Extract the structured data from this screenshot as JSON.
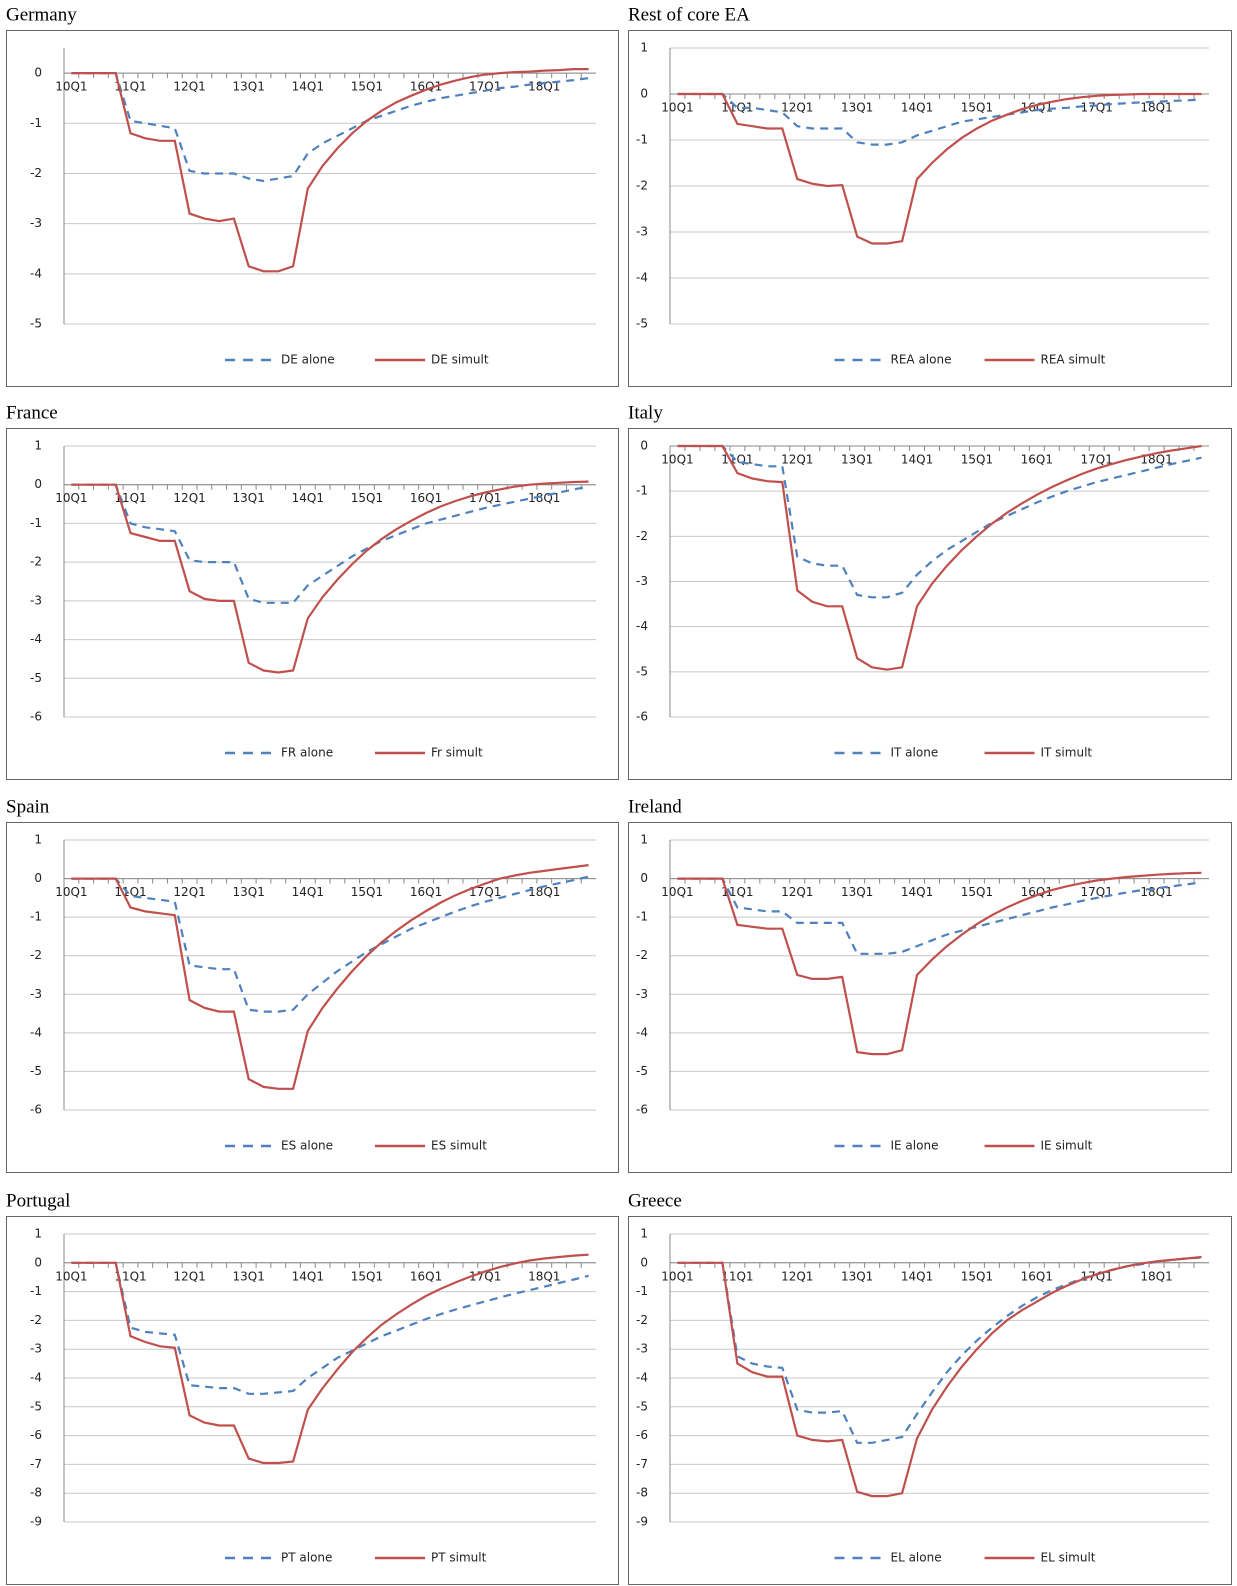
{
  "chart_data": [
    {
      "type": "line",
      "title": "Germany",
      "categories": [
        "10Q1",
        null,
        null,
        null,
        "11Q1",
        null,
        null,
        null,
        "12Q1",
        null,
        null,
        null,
        "13Q1",
        null,
        null,
        null,
        "14Q1",
        null,
        null,
        null,
        "15Q1",
        null,
        null,
        null,
        "16Q1",
        null,
        null,
        null,
        "17Q1",
        null,
        null,
        null,
        "18Q1",
        null,
        null,
        null
      ],
      "series": [
        {
          "name": "DE alone",
          "color": "#4f81bd",
          "dashed": true,
          "values": [
            0,
            0,
            0,
            0,
            -0.95,
            -1.0,
            -1.05,
            -1.1,
            -1.95,
            -2.0,
            -2.0,
            -2.0,
            -2.1,
            -2.15,
            -2.1,
            -2.05,
            -1.6,
            -1.4,
            -1.25,
            -1.1,
            -0.95,
            -0.85,
            -0.75,
            -0.65,
            -0.57,
            -0.5,
            -0.45,
            -0.4,
            -0.35,
            -0.3,
            -0.27,
            -0.23,
            -0.2,
            -0.17,
            -0.14,
            -0.1
          ]
        },
        {
          "name": "DE simult",
          "color": "#c0504d",
          "values": [
            0,
            0,
            0,
            0,
            -1.2,
            -1.3,
            -1.35,
            -1.35,
            -2.8,
            -2.9,
            -2.95,
            -2.9,
            -3.85,
            -3.95,
            -3.95,
            -3.85,
            -2.3,
            -1.85,
            -1.5,
            -1.2,
            -0.95,
            -0.75,
            -0.58,
            -0.45,
            -0.33,
            -0.23,
            -0.15,
            -0.08,
            -0.03,
            0,
            0.02,
            0.03,
            0.05,
            0.06,
            0.08,
            0.08
          ]
        }
      ],
      "ylim": [
        -5,
        0.5
      ],
      "yticks": [
        -5,
        -4,
        -3,
        -2,
        -1,
        0
      ],
      "grid": true
    },
    {
      "type": "line",
      "title": "Rest of core EA",
      "categories": [
        "10Q1",
        null,
        null,
        null,
        "11Q1",
        null,
        null,
        null,
        "12Q1",
        null,
        null,
        null,
        "13Q1",
        null,
        null,
        null,
        "14Q1",
        null,
        null,
        null,
        "15Q1",
        null,
        null,
        null,
        "16Q1",
        null,
        null,
        null,
        "17Q1",
        null,
        null,
        null,
        "18Q1",
        null,
        null,
        null
      ],
      "series": [
        {
          "name": "REA alone",
          "color": "#4f81bd",
          "dashed": true,
          "values": [
            0,
            0,
            0,
            0,
            -0.3,
            -0.3,
            -0.35,
            -0.4,
            -0.7,
            -0.75,
            -0.75,
            -0.75,
            -1.05,
            -1.1,
            -1.1,
            -1.05,
            -0.9,
            -0.8,
            -0.7,
            -0.6,
            -0.55,
            -0.5,
            -0.45,
            -0.4,
            -0.35,
            -0.32,
            -0.3,
            -0.27,
            -0.25,
            -0.22,
            -0.2,
            -0.18,
            -0.17,
            -0.15,
            -0.14,
            -0.12
          ]
        },
        {
          "name": "REA simult",
          "color": "#c0504d",
          "values": [
            0,
            0,
            0,
            0,
            -0.65,
            -0.7,
            -0.75,
            -0.75,
            -1.85,
            -1.95,
            -2.0,
            -1.98,
            -3.1,
            -3.25,
            -3.25,
            -3.2,
            -1.85,
            -1.5,
            -1.2,
            -0.95,
            -0.75,
            -0.58,
            -0.45,
            -0.33,
            -0.24,
            -0.17,
            -0.11,
            -0.07,
            -0.04,
            -0.02,
            -0.01,
            0,
            0,
            0,
            0,
            0
          ]
        }
      ],
      "ylim": [
        -5,
        1
      ],
      "yticks": [
        -5,
        -4,
        -3,
        -2,
        -1,
        0,
        1
      ],
      "grid": true
    },
    {
      "type": "line",
      "title": "France",
      "categories": [
        "10Q1",
        null,
        null,
        null,
        "11Q1",
        null,
        null,
        null,
        "12Q1",
        null,
        null,
        null,
        "13Q1",
        null,
        null,
        null,
        "14Q1",
        null,
        null,
        null,
        "15Q1",
        null,
        null,
        null,
        "16Q1",
        null,
        null,
        null,
        "17Q1",
        null,
        null,
        null,
        "18Q1",
        null,
        null,
        null
      ],
      "series": [
        {
          "name": "FR alone",
          "color": "#4f81bd",
          "dashed": true,
          "values": [
            0,
            0,
            0,
            0,
            -1.0,
            -1.1,
            -1.15,
            -1.2,
            -1.95,
            -2.0,
            -2.0,
            -2.0,
            -2.95,
            -3.05,
            -3.05,
            -3.05,
            -2.6,
            -2.35,
            -2.1,
            -1.85,
            -1.65,
            -1.45,
            -1.3,
            -1.15,
            -1.0,
            -0.9,
            -0.8,
            -0.7,
            -0.6,
            -0.52,
            -0.44,
            -0.36,
            -0.28,
            -0.2,
            -0.12,
            -0.05
          ]
        },
        {
          "name": "Fr simult",
          "color": "#c0504d",
          "values": [
            0,
            0,
            0,
            0,
            -1.25,
            -1.35,
            -1.45,
            -1.45,
            -2.75,
            -2.95,
            -3.0,
            -3.0,
            -4.6,
            -4.8,
            -4.85,
            -4.8,
            -3.45,
            -2.9,
            -2.45,
            -2.05,
            -1.7,
            -1.4,
            -1.15,
            -0.93,
            -0.73,
            -0.56,
            -0.42,
            -0.3,
            -0.2,
            -0.12,
            -0.05,
            0,
            0.03,
            0.05,
            0.07,
            0.08
          ]
        }
      ],
      "ylim": [
        -6,
        1
      ],
      "yticks": [
        -6,
        -5,
        -4,
        -3,
        -2,
        -1,
        0,
        1
      ],
      "grid": true
    },
    {
      "type": "line",
      "title": "Italy",
      "categories": [
        "10Q1",
        null,
        null,
        null,
        "11Q1",
        null,
        null,
        null,
        "12Q1",
        null,
        null,
        null,
        "13Q1",
        null,
        null,
        null,
        "14Q1",
        null,
        null,
        null,
        "15Q1",
        null,
        null,
        null,
        "16Q1",
        null,
        null,
        null,
        "17Q1",
        null,
        null,
        null,
        "18Q1",
        null,
        null,
        null
      ],
      "series": [
        {
          "name": "IT alone",
          "color": "#4f81bd",
          "dashed": true,
          "values": [
            0,
            0,
            0,
            0,
            -0.35,
            -0.4,
            -0.45,
            -0.45,
            -2.45,
            -2.6,
            -2.65,
            -2.65,
            -3.3,
            -3.35,
            -3.35,
            -3.25,
            -2.85,
            -2.55,
            -2.3,
            -2.1,
            -1.9,
            -1.7,
            -1.55,
            -1.4,
            -1.25,
            -1.12,
            -1.0,
            -0.9,
            -0.8,
            -0.72,
            -0.64,
            -0.56,
            -0.48,
            -0.4,
            -0.33,
            -0.26
          ]
        },
        {
          "name": "IT simult",
          "color": "#c0504d",
          "values": [
            0,
            0,
            0,
            0,
            -0.6,
            -0.72,
            -0.78,
            -0.8,
            -3.2,
            -3.45,
            -3.55,
            -3.55,
            -4.7,
            -4.9,
            -4.95,
            -4.9,
            -3.55,
            -3.05,
            -2.65,
            -2.3,
            -2.0,
            -1.72,
            -1.48,
            -1.27,
            -1.08,
            -0.91,
            -0.76,
            -0.62,
            -0.5,
            -0.4,
            -0.31,
            -0.23,
            -0.16,
            -0.1,
            -0.05,
            0
          ]
        }
      ],
      "ylim": [
        -6,
        0
      ],
      "yticks": [
        -6,
        -5,
        -4,
        -3,
        -2,
        -1,
        0
      ],
      "grid": true
    },
    {
      "type": "line",
      "title": "Spain",
      "categories": [
        "10Q1",
        null,
        null,
        null,
        "11Q1",
        null,
        null,
        null,
        "12Q1",
        null,
        null,
        null,
        "13Q1",
        null,
        null,
        null,
        "14Q1",
        null,
        null,
        null,
        "15Q1",
        null,
        null,
        null,
        "16Q1",
        null,
        null,
        null,
        "17Q1",
        null,
        null,
        null,
        "18Q1",
        null,
        null,
        null
      ],
      "series": [
        {
          "name": "ES alone",
          "color": "#4f81bd",
          "dashed": true,
          "values": [
            0,
            0,
            0,
            0,
            -0.45,
            -0.5,
            -0.55,
            -0.6,
            -2.25,
            -2.3,
            -2.35,
            -2.35,
            -3.4,
            -3.45,
            -3.45,
            -3.4,
            -3.0,
            -2.7,
            -2.4,
            -2.15,
            -1.9,
            -1.7,
            -1.5,
            -1.3,
            -1.15,
            -1.0,
            -0.85,
            -0.72,
            -0.6,
            -0.5,
            -0.4,
            -0.3,
            -0.2,
            -0.12,
            -0.04,
            0.05
          ]
        },
        {
          "name": "ES simult",
          "color": "#c0504d",
          "values": [
            0,
            0,
            0,
            0,
            -0.75,
            -0.85,
            -0.9,
            -0.95,
            -3.15,
            -3.35,
            -3.45,
            -3.45,
            -5.2,
            -5.4,
            -5.45,
            -5.45,
            -3.95,
            -3.35,
            -2.85,
            -2.4,
            -2.0,
            -1.65,
            -1.35,
            -1.08,
            -0.84,
            -0.62,
            -0.43,
            -0.27,
            -0.13,
            0,
            0.08,
            0.15,
            0.2,
            0.25,
            0.3,
            0.35
          ]
        }
      ],
      "ylim": [
        -6,
        1
      ],
      "yticks": [
        -6,
        -5,
        -4,
        -3,
        -2,
        -1,
        0,
        1
      ],
      "grid": true
    },
    {
      "type": "line",
      "title": "Ireland",
      "categories": [
        "10Q1",
        null,
        null,
        null,
        "11Q1",
        null,
        null,
        null,
        "12Q1",
        null,
        null,
        null,
        "13Q1",
        null,
        null,
        null,
        "14Q1",
        null,
        null,
        null,
        "15Q1",
        null,
        null,
        null,
        "16Q1",
        null,
        null,
        null,
        "17Q1",
        null,
        null,
        null,
        "18Q1",
        null,
        null,
        null
      ],
      "series": [
        {
          "name": "IE alone",
          "color": "#4f81bd",
          "dashed": true,
          "values": [
            0,
            0,
            0,
            0,
            -0.75,
            -0.8,
            -0.85,
            -0.85,
            -1.15,
            -1.15,
            -1.15,
            -1.15,
            -1.95,
            -1.95,
            -1.95,
            -1.9,
            -1.75,
            -1.6,
            -1.45,
            -1.35,
            -1.25,
            -1.15,
            -1.05,
            -0.95,
            -0.85,
            -0.75,
            -0.67,
            -0.58,
            -0.5,
            -0.43,
            -0.36,
            -0.3,
            -0.25,
            -0.2,
            -0.15,
            -0.1
          ]
        },
        {
          "name": "IE simult",
          "color": "#c0504d",
          "values": [
            0,
            0,
            0,
            0,
            -1.2,
            -1.25,
            -1.3,
            -1.3,
            -2.5,
            -2.6,
            -2.6,
            -2.55,
            -4.5,
            -4.55,
            -4.55,
            -4.45,
            -2.5,
            -2.1,
            -1.75,
            -1.45,
            -1.18,
            -0.95,
            -0.75,
            -0.58,
            -0.43,
            -0.3,
            -0.2,
            -0.12,
            -0.05,
            0,
            0.04,
            0.07,
            0.1,
            0.12,
            0.14,
            0.15
          ]
        }
      ],
      "ylim": [
        -6,
        1
      ],
      "yticks": [
        -6,
        -5,
        -4,
        -3,
        -2,
        -1,
        0,
        1
      ],
      "grid": true
    },
    {
      "type": "line",
      "title": "Portugal",
      "categories": [
        "10Q1",
        null,
        null,
        null,
        "11Q1",
        null,
        null,
        null,
        "12Q1",
        null,
        null,
        null,
        "13Q1",
        null,
        null,
        null,
        "14Q1",
        null,
        null,
        null,
        "15Q1",
        null,
        null,
        null,
        "16Q1",
        null,
        null,
        null,
        "17Q1",
        null,
        null,
        null,
        "18Q1",
        null,
        null,
        null
      ],
      "series": [
        {
          "name": "PT alone",
          "color": "#4f81bd",
          "dashed": true,
          "values": [
            0,
            0,
            0,
            0,
            -2.25,
            -2.4,
            -2.45,
            -2.5,
            -4.25,
            -4.3,
            -4.35,
            -4.35,
            -4.55,
            -4.55,
            -4.5,
            -4.45,
            -4.0,
            -3.65,
            -3.3,
            -3.05,
            -2.8,
            -2.55,
            -2.35,
            -2.15,
            -1.95,
            -1.78,
            -1.62,
            -1.48,
            -1.34,
            -1.2,
            -1.07,
            -0.95,
            -0.83,
            -0.7,
            -0.58,
            -0.45
          ]
        },
        {
          "name": "PT simult",
          "color": "#c0504d",
          "values": [
            0,
            0,
            0,
            0,
            -2.55,
            -2.75,
            -2.9,
            -2.95,
            -5.3,
            -5.55,
            -5.65,
            -5.65,
            -6.8,
            -6.95,
            -6.95,
            -6.9,
            -5.1,
            -4.35,
            -3.7,
            -3.1,
            -2.6,
            -2.15,
            -1.78,
            -1.45,
            -1.15,
            -0.9,
            -0.68,
            -0.48,
            -0.3,
            -0.15,
            -0.02,
            0.08,
            0.15,
            0.2,
            0.25,
            0.28
          ]
        }
      ],
      "ylim": [
        -9,
        1
      ],
      "yticks": [
        -9,
        -8,
        -7,
        -6,
        -5,
        -4,
        -3,
        -2,
        -1,
        0,
        1
      ],
      "grid": true
    },
    {
      "type": "line",
      "title": "Greece",
      "categories": [
        "10Q1",
        null,
        null,
        null,
        "11Q1",
        null,
        null,
        null,
        "12Q1",
        null,
        null,
        null,
        "13Q1",
        null,
        null,
        null,
        "14Q1",
        null,
        null,
        null,
        "15Q1",
        null,
        null,
        null,
        "16Q1",
        null,
        null,
        null,
        "17Q1",
        null,
        null,
        null,
        "18Q1",
        null,
        null,
        null
      ],
      "series": [
        {
          "name": "EL alone",
          "color": "#4f81bd",
          "dashed": true,
          "values": [
            0,
            0,
            0,
            0,
            -3.25,
            -3.5,
            -3.6,
            -3.65,
            -5.1,
            -5.2,
            -5.2,
            -5.15,
            -6.25,
            -6.25,
            -6.15,
            -6.05,
            -5.25,
            -4.5,
            -3.8,
            -3.2,
            -2.7,
            -2.25,
            -1.85,
            -1.5,
            -1.2,
            -0.95,
            -0.75,
            -0.55,
            -0.4,
            -0.25,
            -0.12,
            -0.05,
            0.03,
            0.1,
            0.15,
            0.18
          ]
        },
        {
          "name": "EL simult",
          "color": "#c0504d",
          "values": [
            0,
            0,
            0,
            0,
            -3.5,
            -3.8,
            -3.95,
            -3.95,
            -6.0,
            -6.15,
            -6.2,
            -6.15,
            -7.95,
            -8.1,
            -8.1,
            -8.0,
            -6.1,
            -5.1,
            -4.3,
            -3.6,
            -3.0,
            -2.45,
            -2.0,
            -1.65,
            -1.35,
            -1.05,
            -0.8,
            -0.58,
            -0.4,
            -0.25,
            -0.12,
            -0.02,
            0.05,
            0.1,
            0.15,
            0.2
          ]
        }
      ],
      "ylim": [
        -9,
        1
      ],
      "yticks": [
        -9,
        -8,
        -7,
        -6,
        -5,
        -4,
        -3,
        -2,
        -1,
        0,
        1
      ],
      "grid": true
    }
  ]
}
